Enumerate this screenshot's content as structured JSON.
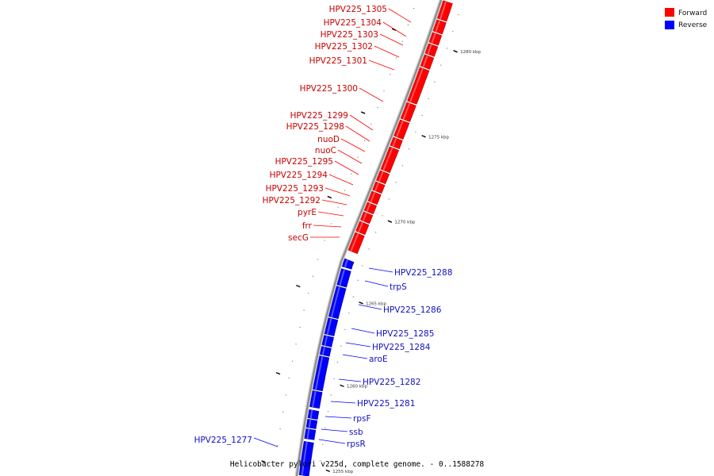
{
  "title": "Helicobacter pylori v225d, complete genome. - 0..1588278",
  "legend": [
    {
      "label": "Forward",
      "color": "#ff0000"
    },
    {
      "label": "Reverse",
      "color": "#0000ff"
    }
  ],
  "colors": {
    "forward": "#ff0000",
    "reverse": "#0000ff",
    "forward_edge": "#c40000",
    "reverse_edge": "#0000b0",
    "axis": "#909090"
  },
  "ticks": [
    "1280 kbp",
    "1275 kbp",
    "1270 kbp",
    "1265 kbp",
    "1260 kbp",
    "1255 kbp"
  ],
  "forward_genes": [
    "HPV225_1305",
    "HPV225_1304",
    "HPV225_1303",
    "HPV225_1302",
    "HPV225_1301",
    "HPV225_1300",
    "HPV225_1299",
    "HPV225_1298",
    "nuoD",
    "nuoC",
    "HPV225_1295",
    "HPV225_1294",
    "HPV225_1293",
    "HPV225_1292",
    "pyrE",
    "frr",
    "secG"
  ],
  "reverse_genes": [
    "HPV225_1288",
    "trpS",
    "HPV225_1286",
    "HPV225_1285",
    "HPV225_1284",
    "aroE",
    "HPV225_1282",
    "HPV225_1281",
    "rpsF",
    "ssb",
    "rpsR",
    "HPV225_1277"
  ]
}
